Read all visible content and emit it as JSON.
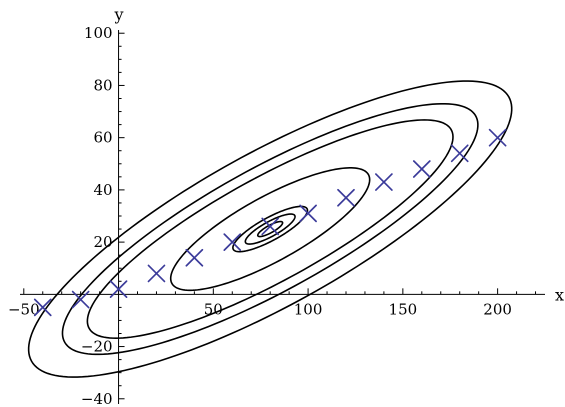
{
  "chart_data": {
    "type": "scatter",
    "xlabel": "x",
    "ylabel": "y",
    "xlim": [
      -52,
      225
    ],
    "ylim": [
      -42,
      102
    ],
    "x_ticks": [
      -50,
      50,
      100,
      150,
      200
    ],
    "y_ticks": [
      -40,
      -20,
      20,
      40,
      60,
      80,
      100
    ],
    "x_tick_labels": [
      "−50",
      "50",
      "100",
      "150",
      "200"
    ],
    "y_tick_labels": [
      "−40",
      "−20",
      "20",
      "40",
      "60",
      "80",
      "100"
    ],
    "marker_color": "#3b3b9a",
    "points": [
      {
        "x": -40,
        "y": -5
      },
      {
        "x": -20,
        "y": -2
      },
      {
        "x": 0,
        "y": 2
      },
      {
        "x": 20,
        "y": 8
      },
      {
        "x": 40,
        "y": 14
      },
      {
        "x": 60,
        "y": 20
      },
      {
        "x": 80,
        "y": 26
      },
      {
        "x": 100,
        "y": 31
      },
      {
        "x": 120,
        "y": 37
      },
      {
        "x": 140,
        "y": 43
      },
      {
        "x": 160,
        "y": 48
      },
      {
        "x": 180,
        "y": 54
      },
      {
        "x": 200,
        "y": 60
      }
    ],
    "contour_center": {
      "x": 80,
      "y": 25
    },
    "contours": [
      {
        "a": 136,
        "b": 31,
        "angle_deg": 21
      },
      {
        "a": 117,
        "b": 25,
        "angle_deg": 21
      },
      {
        "a": 103,
        "b": 21,
        "angle_deg": 21
      },
      {
        "a": 56,
        "b": 13,
        "angle_deg": 21
      },
      {
        "a": 21,
        "b": 4.6,
        "angle_deg": 21
      },
      {
        "a": 14,
        "b": 3.0,
        "angle_deg": 21
      },
      {
        "a": 7,
        "b": 1.5,
        "angle_deg": 21
      }
    ]
  }
}
